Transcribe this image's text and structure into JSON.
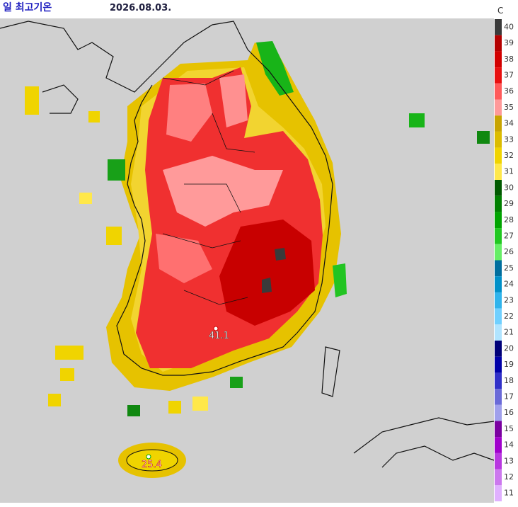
{
  "header": {
    "title": "일 최고기온",
    "date": "2026.08.03."
  },
  "legend": {
    "unit": "C",
    "levels": [
      {
        "value": 40,
        "color": "#3a3a3a"
      },
      {
        "value": 39,
        "color": "#b40000"
      },
      {
        "value": 38,
        "color": "#d20000"
      },
      {
        "value": 37,
        "color": "#e81010"
      },
      {
        "value": 36,
        "color": "#ff5a5a"
      },
      {
        "value": 35,
        "color": "#ff9a9a"
      },
      {
        "value": 34,
        "color": "#c8a400"
      },
      {
        "value": 33,
        "color": "#dcbc00"
      },
      {
        "value": 32,
        "color": "#f0d400"
      },
      {
        "value": 31,
        "color": "#ffe84a"
      },
      {
        "value": 30,
        "color": "#005a00"
      },
      {
        "value": 29,
        "color": "#008000"
      },
      {
        "value": 28,
        "color": "#00a400"
      },
      {
        "value": 27,
        "color": "#20c820"
      },
      {
        "value": 26,
        "color": "#66ee66"
      },
      {
        "value": 25,
        "color": "#006e9e"
      },
      {
        "value": 24,
        "color": "#0090c8"
      },
      {
        "value": 23,
        "color": "#30b4ec"
      },
      {
        "value": 22,
        "color": "#70d0ff"
      },
      {
        "value": 21,
        "color": "#b0e4ff"
      },
      {
        "value": 20,
        "color": "#000078"
      },
      {
        "value": 19,
        "color": "#0000a8"
      },
      {
        "value": 18,
        "color": "#3030c8"
      },
      {
        "value": 17,
        "color": "#6a6ad8"
      },
      {
        "value": 16,
        "color": "#a0a0ec"
      },
      {
        "value": 15,
        "color": "#7a00a0"
      },
      {
        "value": 14,
        "color": "#a000cc"
      },
      {
        "value": 13,
        "color": "#b838e0"
      },
      {
        "value": 12,
        "color": "#cc78ee"
      },
      {
        "value": 11,
        "color": "#e0b0ff"
      }
    ]
  },
  "stations": [
    {
      "value": 41.1
    },
    {
      "value": 25.4
    }
  ]
}
